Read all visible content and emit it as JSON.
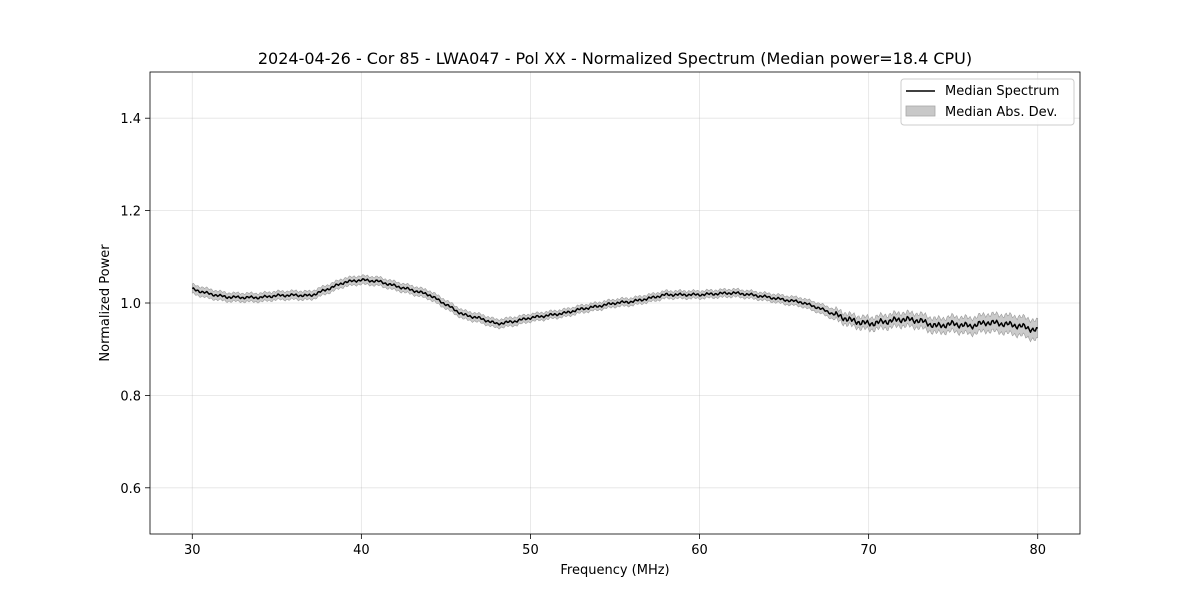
{
  "chart_data": {
    "type": "line",
    "title": "2024-04-26 - Cor 85 - LWA047 - Pol XX - Normalized Spectrum (Median power=18.4 CPU)",
    "xlabel": "Frequency (MHz)",
    "ylabel": "Normalized Power",
    "xlim": [
      27.5,
      82.5
    ],
    "ylim": [
      0.5,
      1.5
    ],
    "xticks": [
      30,
      40,
      50,
      60,
      70,
      80
    ],
    "xtick_labels": [
      "30",
      "40",
      "50",
      "60",
      "70",
      "80"
    ],
    "yticks": [
      0.6,
      0.8,
      1.0,
      1.2,
      1.4
    ],
    "ytick_labels": [
      "0.6",
      "0.8",
      "1.0",
      "1.2",
      "1.4"
    ],
    "grid": true,
    "legend_position": "top-right",
    "legend": [
      "Median Spectrum",
      "Median Abs. Dev."
    ],
    "series": [
      {
        "name": "Median Spectrum",
        "color": "#000000",
        "x": [
          30,
          31,
          32,
          33,
          34,
          35,
          36,
          37,
          38,
          39,
          40,
          41,
          42,
          43,
          44,
          45,
          46,
          47,
          48,
          49,
          50,
          51,
          52,
          53,
          54,
          55,
          56,
          57,
          58,
          59,
          60,
          61,
          62,
          63,
          64,
          65,
          66,
          67,
          68,
          69,
          70,
          71,
          72,
          73,
          74,
          75,
          76,
          77,
          78,
          79,
          80
        ],
        "values": [
          1.03,
          1.02,
          1.013,
          1.012,
          1.012,
          1.016,
          1.017,
          1.016,
          1.03,
          1.045,
          1.05,
          1.047,
          1.037,
          1.028,
          1.018,
          0.997,
          0.975,
          0.967,
          0.955,
          0.96,
          0.968,
          0.973,
          0.978,
          0.987,
          0.993,
          1.0,
          1.003,
          1.01,
          1.018,
          1.018,
          1.018,
          1.02,
          1.022,
          1.018,
          1.013,
          1.007,
          1.002,
          0.99,
          0.975,
          0.962,
          0.955,
          0.96,
          0.965,
          0.962,
          0.95,
          0.955,
          0.95,
          0.958,
          0.955,
          0.95,
          0.94
        ]
      },
      {
        "name": "Median Abs. Dev.",
        "color": "#c8c8c8",
        "x": [
          30,
          31,
          32,
          33,
          34,
          35,
          36,
          37,
          38,
          39,
          40,
          41,
          42,
          43,
          44,
          45,
          46,
          47,
          48,
          49,
          50,
          51,
          52,
          53,
          54,
          55,
          56,
          57,
          58,
          59,
          60,
          61,
          62,
          63,
          64,
          65,
          66,
          67,
          68,
          69,
          70,
          71,
          72,
          73,
          74,
          75,
          76,
          77,
          78,
          79,
          80
        ],
        "values": [
          0.01,
          0.01,
          0.009,
          0.009,
          0.009,
          0.009,
          0.009,
          0.009,
          0.009,
          0.009,
          0.009,
          0.009,
          0.009,
          0.009,
          0.009,
          0.009,
          0.009,
          0.009,
          0.009,
          0.009,
          0.008,
          0.008,
          0.008,
          0.008,
          0.008,
          0.008,
          0.008,
          0.008,
          0.008,
          0.008,
          0.008,
          0.008,
          0.008,
          0.008,
          0.008,
          0.009,
          0.009,
          0.01,
          0.011,
          0.012,
          0.013,
          0.014,
          0.014,
          0.015,
          0.015,
          0.016,
          0.017,
          0.018,
          0.019,
          0.02,
          0.021
        ]
      }
    ]
  }
}
